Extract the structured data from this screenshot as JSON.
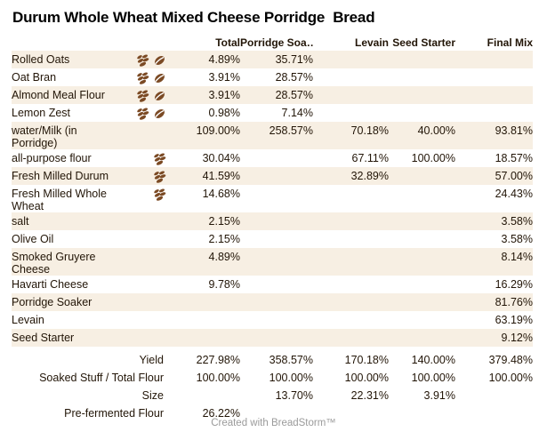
{
  "title": "Durum Whole Wheat Mixed Cheese Porridge  Bread",
  "table": {
    "columns": [
      "Total",
      "Porridge Soa…",
      "Levain",
      "Seed Starter",
      "Final Mix"
    ],
    "rows": [
      {
        "label": "Rolled Oats",
        "icons": [
          "leaves-icon",
          "bean-icon"
        ],
        "values": [
          "4.89%",
          "35.71%",
          "",
          "",
          ""
        ]
      },
      {
        "label": "Oat Bran",
        "icons": [
          "leaves-icon",
          "bean-icon"
        ],
        "values": [
          "3.91%",
          "28.57%",
          "",
          "",
          ""
        ]
      },
      {
        "label": "Almond Meal Flour",
        "icons": [
          "leaves-icon",
          "bean-icon"
        ],
        "values": [
          "3.91%",
          "28.57%",
          "",
          "",
          ""
        ]
      },
      {
        "label": "Lemon Zest",
        "icons": [
          "leaves-icon",
          "bean-icon"
        ],
        "values": [
          "0.98%",
          "7.14%",
          "",
          "",
          ""
        ]
      },
      {
        "label": "water/Milk (in Porridge)",
        "icons": [],
        "values": [
          "109.00%",
          "258.57%",
          "70.18%",
          "40.00%",
          "93.81%"
        ]
      },
      {
        "label": "all-purpose flour",
        "icons": [
          "leaves-icon"
        ],
        "values": [
          "30.04%",
          "",
          "67.11%",
          "100.00%",
          "18.57%"
        ]
      },
      {
        "label": "Fresh Milled Durum",
        "icons": [
          "leaves-icon"
        ],
        "values": [
          "41.59%",
          "",
          "32.89%",
          "",
          "57.00%"
        ]
      },
      {
        "label": "Fresh Milled Whole Wheat",
        "icons": [
          "leaves-icon"
        ],
        "values": [
          "14.68%",
          "",
          "",
          "",
          "24.43%"
        ]
      },
      {
        "label": "salt",
        "icons": [],
        "values": [
          "2.15%",
          "",
          "",
          "",
          "3.58%"
        ]
      },
      {
        "label": "Olive Oil",
        "icons": [],
        "values": [
          "2.15%",
          "",
          "",
          "",
          "3.58%"
        ]
      },
      {
        "label": "Smoked Gruyere Cheese",
        "icons": [],
        "values": [
          "4.89%",
          "",
          "",
          "",
          "8.14%"
        ]
      },
      {
        "label": "Havarti Cheese",
        "icons": [],
        "values": [
          "9.78%",
          "",
          "",
          "",
          "16.29%"
        ]
      },
      {
        "label": "Porridge Soaker",
        "icons": [],
        "values": [
          "",
          "",
          "",
          "",
          "81.76%"
        ]
      },
      {
        "label": "Levain",
        "icons": [],
        "values": [
          "",
          "",
          "",
          "",
          "63.19%"
        ]
      },
      {
        "label": "Seed Starter",
        "icons": [],
        "values": [
          "",
          "",
          "",
          "",
          "9.12%"
        ]
      }
    ],
    "summary_rows": [
      {
        "label": "Yield",
        "values": [
          "227.98%",
          "358.57%",
          "170.18%",
          "140.00%",
          "379.48%"
        ]
      },
      {
        "label": "Soaked Stuff / Total Flour",
        "values": [
          "100.00%",
          "100.00%",
          "100.00%",
          "100.00%",
          "100.00%"
        ]
      },
      {
        "label": "Size",
        "values": [
          "",
          "13.70%",
          "22.31%",
          "3.91%",
          ""
        ]
      },
      {
        "label": "Pre-fermented Flour",
        "values": [
          "26.22%",
          "",
          "",
          "",
          ""
        ]
      }
    ]
  },
  "footer": "Created with BreadStorm™",
  "colors": {
    "stripe": "#f7efe3",
    "text": "#221507",
    "icon_brown": "#7b4a24",
    "footer_gray": "#9b9b9b"
  }
}
